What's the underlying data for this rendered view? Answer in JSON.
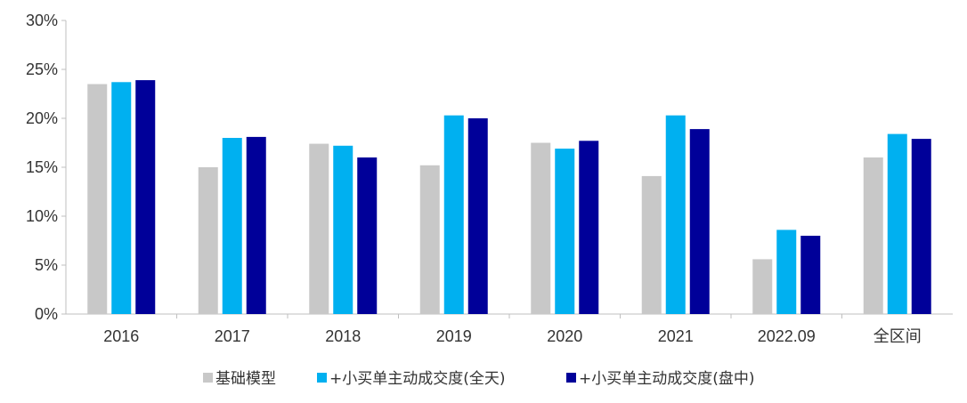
{
  "chart_data": {
    "type": "bar",
    "title": "",
    "xlabel": "",
    "ylabel": "",
    "ylim": [
      0,
      30
    ],
    "yticks": [
      "0%",
      "5%",
      "10%",
      "15%",
      "20%",
      "25%",
      "30%"
    ],
    "categories": [
      "2016",
      "2017",
      "2018",
      "2019",
      "2020",
      "2021",
      "2022.09",
      "全区间"
    ],
    "series": [
      {
        "name": "基础模型",
        "color": "#c8c8c8",
        "values": [
          23.5,
          15.0,
          17.4,
          15.2,
          17.5,
          14.1,
          5.6,
          16.0
        ]
      },
      {
        "name": "+小买单主动成交度(全天)",
        "color": "#00b0f0",
        "values": [
          23.7,
          18.0,
          17.2,
          20.3,
          16.9,
          20.3,
          8.6,
          18.4
        ]
      },
      {
        "name": "+小买单主动成交度(盘中)",
        "color": "#000099",
        "values": [
          23.9,
          18.1,
          16.0,
          20.0,
          17.7,
          18.9,
          8.0,
          17.9
        ]
      }
    ],
    "legend_position": "bottom",
    "grid": false
  }
}
